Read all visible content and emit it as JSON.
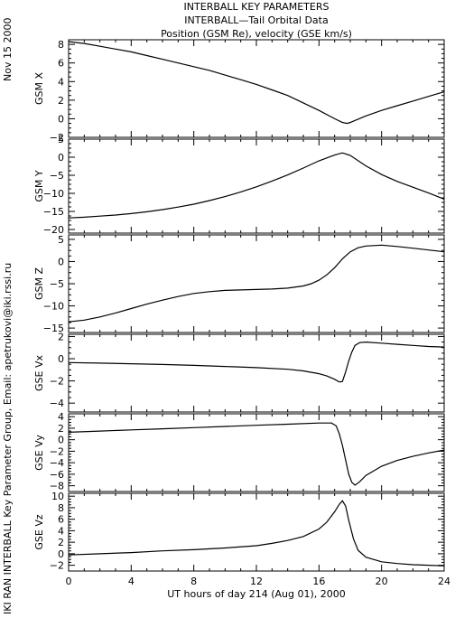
{
  "header": {
    "title": "INTERBALL KEY PARAMETERS",
    "subtitle": "INTERBALL—Tail Orbital Data",
    "subtitle2": "Position (GSM Re), velocity (GSE km/s)"
  },
  "side": {
    "date": "Nov 15 2000",
    "credit": "IKI RAN INTERBALL Key Parameter Group, Email: apetrukovi@iki.rssi.ru"
  },
  "chart_data": {
    "type": "line",
    "xlabel": "UT hours of day 214 (Aug 01), 2000",
    "xlim": [
      0,
      24
    ],
    "xticks": [
      "0",
      "4",
      "8",
      "12",
      "16",
      "20",
      "24"
    ],
    "panels": [
      {
        "ylabel": "GSM X",
        "ylim": [
          -2,
          8.5
        ],
        "yticks": [
          -2,
          0,
          2,
          4,
          6,
          8
        ],
        "x": [
          0,
          1,
          2,
          3,
          4,
          5,
          6,
          7,
          8,
          9,
          10,
          11,
          12,
          13,
          14,
          15,
          16,
          17,
          17.5,
          17.8,
          18,
          19,
          20,
          21,
          22,
          23,
          24
        ],
        "y": [
          8.3,
          8.1,
          7.8,
          7.5,
          7.2,
          6.8,
          6.4,
          6.0,
          5.6,
          5.2,
          4.7,
          4.2,
          3.7,
          3.1,
          2.5,
          1.7,
          0.9,
          0.0,
          -0.4,
          -0.5,
          -0.4,
          0.3,
          0.9,
          1.4,
          1.9,
          2.4,
          2.9
        ]
      },
      {
        "ylabel": "GSM Y",
        "ylim": [
          -21,
          5
        ],
        "yticks": [
          -20,
          -15,
          -10,
          -5,
          0,
          5
        ],
        "x": [
          0,
          1,
          2,
          3,
          4,
          5,
          6,
          7,
          8,
          9,
          10,
          11,
          12,
          13,
          14,
          15,
          16,
          17,
          17.5,
          18,
          19,
          20,
          21,
          22,
          23,
          24
        ],
        "y": [
          -16.8,
          -16.6,
          -16.3,
          -16.0,
          -15.6,
          -15.1,
          -14.5,
          -13.8,
          -13.0,
          -12.0,
          -10.9,
          -9.6,
          -8.2,
          -6.6,
          -4.9,
          -3.0,
          -1.0,
          0.6,
          1.2,
          0.5,
          -2.4,
          -4.8,
          -6.7,
          -8.3,
          -9.9,
          -11.6
        ]
      },
      {
        "ylabel": "GSM Z",
        "ylim": [
          -16,
          6
        ],
        "yticks": [
          -15,
          -10,
          -5,
          0,
          5
        ],
        "x": [
          0,
          1,
          2,
          3,
          4,
          5,
          6,
          7,
          8,
          9,
          10,
          11,
          12,
          13,
          14,
          15,
          15.5,
          16,
          16.5,
          17,
          17.5,
          18,
          18.5,
          19,
          20,
          21,
          22,
          23,
          24
        ],
        "y": [
          -13.6,
          -13.2,
          -12.5,
          -11.6,
          -10.6,
          -9.6,
          -8.7,
          -7.9,
          -7.2,
          -6.8,
          -6.5,
          -6.4,
          -6.3,
          -6.2,
          -6.0,
          -5.5,
          -5.0,
          -4.2,
          -3.0,
          -1.4,
          0.6,
          2.2,
          3.1,
          3.5,
          3.7,
          3.4,
          3.0,
          2.6,
          2.2
        ]
      },
      {
        "ylabel": "GSE Vx",
        "ylim": [
          -4.8,
          2.2
        ],
        "yticks": [
          -4,
          -2,
          0,
          2
        ],
        "x": [
          0,
          2,
          4,
          6,
          8,
          10,
          12,
          14,
          15,
          16,
          16.5,
          17,
          17.3,
          17.5,
          17.7,
          17.9,
          18.1,
          18.3,
          18.6,
          19,
          20,
          21,
          22,
          23,
          24
        ],
        "y": [
          -0.35,
          -0.4,
          -0.45,
          -0.52,
          -0.6,
          -0.7,
          -0.8,
          -0.95,
          -1.1,
          -1.35,
          -1.55,
          -1.85,
          -2.1,
          -2.05,
          -1.2,
          -0.2,
          0.6,
          1.2,
          1.45,
          1.5,
          1.4,
          1.3,
          1.2,
          1.1,
          1.05
        ]
      },
      {
        "ylabel": "GSE Vy",
        "ylim": [
          -9,
          4.5
        ],
        "yticks": [
          -8,
          -6,
          -4,
          -2,
          0,
          2,
          4
        ],
        "x": [
          0,
          2,
          4,
          6,
          8,
          10,
          12,
          14,
          16,
          16.8,
          17.1,
          17.3,
          17.5,
          17.7,
          17.9,
          18.1,
          18.3,
          18.6,
          19,
          20,
          21,
          22,
          23,
          24
        ],
        "y": [
          1.3,
          1.5,
          1.7,
          1.9,
          2.1,
          2.3,
          2.5,
          2.7,
          2.9,
          2.9,
          2.4,
          1.0,
          -1.0,
          -3.5,
          -6.0,
          -7.4,
          -7.9,
          -7.3,
          -6.2,
          -4.6,
          -3.6,
          -2.9,
          -2.3,
          -1.8
        ]
      },
      {
        "ylabel": "GSE Vz",
        "ylim": [
          -3,
          10.5
        ],
        "yticks": [
          -2,
          0,
          2,
          4,
          6,
          8,
          10
        ],
        "x": [
          0,
          2,
          4,
          6,
          8,
          10,
          12,
          13,
          14,
          15,
          16,
          16.5,
          17,
          17.3,
          17.5,
          17.7,
          17.9,
          18.2,
          18.5,
          19,
          20,
          21,
          22,
          23,
          24
        ],
        "y": [
          -0.2,
          0.0,
          0.2,
          0.5,
          0.7,
          1.0,
          1.4,
          1.8,
          2.3,
          3.0,
          4.3,
          5.5,
          7.3,
          8.6,
          9.2,
          8.3,
          5.8,
          2.6,
          0.6,
          -0.6,
          -1.4,
          -1.7,
          -1.9,
          -2.0,
          -2.1
        ]
      }
    ]
  }
}
